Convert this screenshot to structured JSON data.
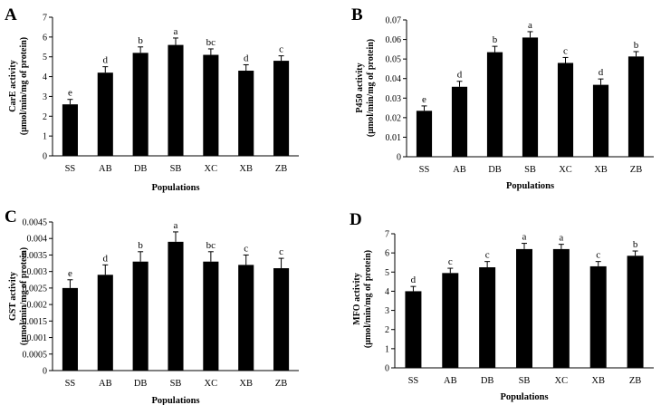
{
  "chart_data": [
    {
      "type": "bar",
      "panel_label": "A",
      "categories": [
        "SS",
        "AB",
        "DB",
        "SB",
        "XC",
        "XB",
        "ZB"
      ],
      "values": [
        2.6,
        4.2,
        5.2,
        5.6,
        5.1,
        4.3,
        4.8
      ],
      "errors": [
        0.25,
        0.3,
        0.3,
        0.35,
        0.3,
        0.3,
        0.25
      ],
      "letters": [
        "e",
        "d",
        "b",
        "a",
        "bc",
        "d",
        "c"
      ],
      "ylabel_line1": "CarE activity",
      "ylabel_line2": "(μmol/min/mg of protein)",
      "xlabel": "Populations",
      "ylim": [
        0,
        7
      ],
      "ticks": [
        0,
        1,
        2,
        3,
        4,
        5,
        6,
        7
      ],
      "tick_labels": [
        "0",
        "1",
        "2",
        "3",
        "4",
        "5",
        "6",
        "7"
      ]
    },
    {
      "type": "bar",
      "panel_label": "B",
      "categories": [
        "SS",
        "AB",
        "DB",
        "SB",
        "XC",
        "XB",
        "ZB"
      ],
      "values": [
        0.0235,
        0.0358,
        0.0535,
        0.061,
        0.048,
        0.0368,
        0.0513
      ],
      "errors": [
        0.0025,
        0.0028,
        0.003,
        0.003,
        0.0028,
        0.003,
        0.0025
      ],
      "letters": [
        "e",
        "d",
        "b",
        "a",
        "c",
        "d",
        "b"
      ],
      "ylabel_line1": "P450 activity",
      "ylabel_line2": "(μmol/min/mg of protein)",
      "xlabel": "Populations",
      "ylim": [
        0,
        0.07
      ],
      "ticks": [
        0,
        0.01,
        0.02,
        0.03,
        0.04,
        0.05,
        0.06,
        0.07
      ],
      "tick_labels": [
        "0",
        "0.01",
        "0.02",
        "0.03",
        "0.04",
        "0.05",
        "0.06",
        "0.07"
      ]
    },
    {
      "type": "bar",
      "panel_label": "C",
      "categories": [
        "SS",
        "AB",
        "DB",
        "SB",
        "XC",
        "XB",
        "ZB"
      ],
      "values": [
        0.0025,
        0.0029,
        0.0033,
        0.0039,
        0.0033,
        0.0032,
        0.0031
      ],
      "errors": [
        0.00025,
        0.0003,
        0.0003,
        0.0003,
        0.0003,
        0.0003,
        0.0003
      ],
      "letters": [
        "e",
        "d",
        "b",
        "a",
        "bc",
        "c",
        "c"
      ],
      "ylabel_line1": "GST activity",
      "ylabel_line2": "(μmol/min/mg of protein)",
      "xlabel": "Populations",
      "ylim": [
        0,
        0.0045
      ],
      "ticks": [
        0,
        0.0005,
        0.001,
        0.0015,
        0.002,
        0.0025,
        0.003,
        0.0035,
        0.004,
        0.0045
      ],
      "tick_labels": [
        "0",
        "0.0005",
        "0.001",
        "0.0015",
        "0.002",
        "0.0025",
        "0.003",
        "0.0035",
        "0.004",
        "0.0045"
      ]
    },
    {
      "type": "bar",
      "panel_label": "D",
      "categories": [
        "SS",
        "AB",
        "DB",
        "SB",
        "XC",
        "XB",
        "ZB"
      ],
      "values": [
        4.0,
        4.95,
        5.25,
        6.2,
        6.2,
        5.3,
        5.85
      ],
      "errors": [
        0.25,
        0.25,
        0.3,
        0.3,
        0.25,
        0.25,
        0.25
      ],
      "letters": [
        "d",
        "c",
        "c",
        "a",
        "a",
        "c",
        "b"
      ],
      "ylabel_line1": "MFO activity",
      "ylabel_line2": "(μmol/min/mg of protein)",
      "xlabel": "Populations",
      "ylim": [
        0,
        7
      ],
      "ticks": [
        0,
        1,
        2,
        3,
        4,
        5,
        6,
        7
      ],
      "tick_labels": [
        "0",
        "1",
        "2",
        "3",
        "4",
        "5",
        "6",
        "7"
      ]
    }
  ]
}
